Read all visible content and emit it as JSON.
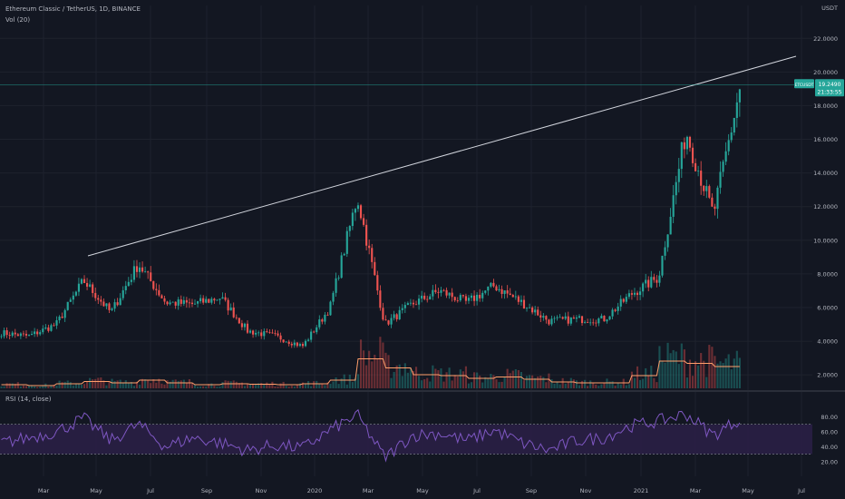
{
  "header": {
    "symbol_title": "Ethereum Classic / TetherUS, 1D, BINANCE",
    "volume_indicator": "Vol (20)",
    "rsi_indicator": "RSI (14, close)"
  },
  "price_axis": {
    "currency": "USDT",
    "ticks": [
      "22.0000",
      "20.0000",
      "18.0000",
      "16.0000",
      "14.0000",
      "12.0000",
      "10.0000",
      "8.0000",
      "6.0000",
      "4.0000",
      "2.0000"
    ]
  },
  "rsi_axis": {
    "ticks": [
      "80.00",
      "60.00",
      "40.00",
      "20.00"
    ]
  },
  "time_axis": {
    "ticks": [
      "Mar",
      "May",
      "Jul",
      "Sep",
      "Nov",
      "2020",
      "Mar",
      "May",
      "Jul",
      "Sep",
      "Nov",
      "2021",
      "Mar",
      "May",
      "Jul"
    ]
  },
  "price_badge": {
    "symbol": "ETCUSDT",
    "price": "19.2490",
    "countdown": "21:33:55"
  },
  "colors": {
    "background": "#131722",
    "up": "#26a69a",
    "down": "#ef5350",
    "rsi_line": "#7e57c2",
    "rsi_band": "#2a1f45",
    "vol_ma": "#ff9f6b",
    "trendline": "#d1d4dc",
    "price_line": "#26a69a"
  },
  "chart_data": [
    {
      "type": "line",
      "series": [
        {
          "name": "",
          "x": [
            "2019-01",
            "2019-02",
            "2019-03",
            "2019-04",
            "2019-05",
            "2019-06",
            "2019-07",
            "2019-08",
            "2019-09",
            "2019-10",
            "2019-11",
            "2019-12",
            "2020-01",
            "2020-02",
            "2020-03",
            "2020-04",
            "2020-05",
            "2020-06",
            "2020-07",
            "2020-08",
            "2020-09",
            "2020-10",
            "2020-11",
            "2020-12",
            "2021-01",
            "2021-02",
            "2021-03",
            "2021-04"
          ],
          "values": [
            4.5,
            4.3,
            5.0,
            7.6,
            5.7,
            8.6,
            6.3,
            6.2,
            6.6,
            4.6,
            4.3,
            3.7,
            6.0,
            12.6,
            5.0,
            6.2,
            7.0,
            6.3,
            7.3,
            6.3,
            5.2,
            5.3,
            5.3,
            6.8,
            7.8,
            16.5,
            11.5,
            19.25
          ]
        }
      ],
      "ylim": [
        1.2,
        23.2
      ],
      "annotations": [
        "trendline resistance",
        "ETCUSDT last price 19.2490"
      ]
    },
    {
      "type": "bar",
      "title": "Vol (20)",
      "values": [
        0.08,
        0.06,
        0.1,
        0.15,
        0.12,
        0.18,
        0.12,
        0.08,
        0.1,
        0.09,
        0.08,
        0.1,
        0.18,
        0.65,
        0.45,
        0.3,
        0.28,
        0.22,
        0.25,
        0.2,
        0.14,
        0.12,
        0.12,
        0.28,
        0.6,
        0.55,
        0.48,
        0.6
      ]
    },
    {
      "type": "line",
      "title": "RSI (14, close)",
      "values": [
        45,
        52,
        60,
        78,
        48,
        70,
        40,
        52,
        45,
        35,
        42,
        38,
        62,
        82,
        25,
        55,
        58,
        48,
        62,
        45,
        35,
        48,
        52,
        68,
        74,
        84,
        55,
        78
      ],
      "ylim": [
        10,
        95
      ],
      "bands": [
        30,
        70
      ]
    }
  ]
}
